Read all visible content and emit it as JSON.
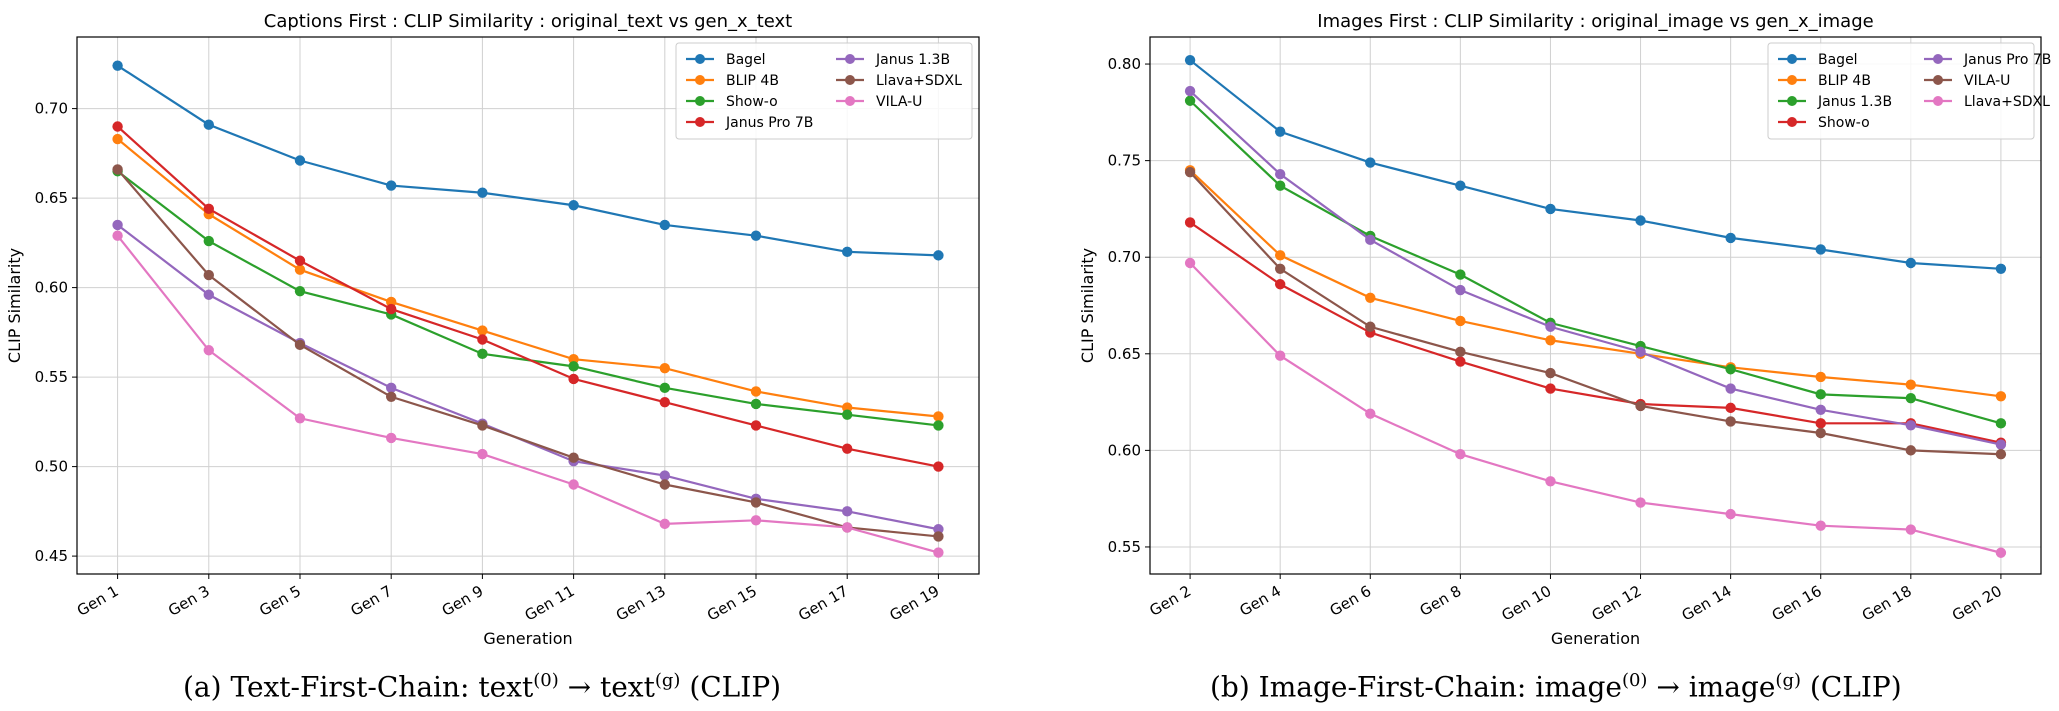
{
  "chart_data": [
    {
      "type": "line",
      "title": "Captions First : CLIP Similarity : original_text vs gen_x_text",
      "xlabel": "Generation",
      "ylabel": "CLIP Similarity",
      "categories": [
        "Gen 1",
        "Gen 3",
        "Gen 5",
        "Gen 7",
        "Gen 9",
        "Gen 11",
        "Gen 13",
        "Gen 15",
        "Gen 17",
        "Gen 19"
      ],
      "ylim": [
        0.44,
        0.74
      ],
      "yticks": [
        "0.45",
        "0.50",
        "0.55",
        "0.60",
        "0.65",
        "0.70"
      ],
      "grid": true,
      "legend": "top-right",
      "legend_columns": 2,
      "series": [
        {
          "name": "Bagel",
          "color": "#1f77b4",
          "values": [
            0.724,
            0.691,
            0.671,
            0.657,
            0.653,
            0.646,
            0.635,
            0.629,
            0.62,
            0.618
          ]
        },
        {
          "name": "BLIP 4B",
          "color": "#ff7f0e",
          "values": [
            0.683,
            0.641,
            0.61,
            0.592,
            0.576,
            0.56,
            0.555,
            0.542,
            0.533,
            0.528
          ]
        },
        {
          "name": "Show-o",
          "color": "#2ca02c",
          "values": [
            0.665,
            0.626,
            0.598,
            0.585,
            0.563,
            0.556,
            0.544,
            0.535,
            0.529,
            0.523
          ]
        },
        {
          "name": "Janus Pro 7B",
          "color": "#d62728",
          "values": [
            0.69,
            0.644,
            0.615,
            0.588,
            0.571,
            0.549,
            0.536,
            0.523,
            0.51,
            0.5
          ]
        },
        {
          "name": "Janus 1.3B",
          "color": "#9467bd",
          "values": [
            0.635,
            0.596,
            0.569,
            0.544,
            0.524,
            0.503,
            0.495,
            0.482,
            0.475,
            0.465
          ]
        },
        {
          "name": "Llava+SDXL",
          "color": "#8c564b",
          "values": [
            0.666,
            0.607,
            0.568,
            0.539,
            0.523,
            0.505,
            0.49,
            0.48,
            0.466,
            0.461
          ]
        },
        {
          "name": "VILA-U",
          "color": "#e377c2",
          "values": [
            0.629,
            0.565,
            0.527,
            0.516,
            0.507,
            0.49,
            0.468,
            0.47,
            0.466,
            0.452
          ]
        }
      ],
      "caption": {
        "prefix": "(a) Text-First-Chain: text",
        "sup1": "(0)",
        "arrow": " → text",
        "sup2": "(g)",
        "suffix": " (CLIP)"
      }
    },
    {
      "type": "line",
      "title": "Images First : CLIP Similarity : original_image vs gen_x_image",
      "xlabel": "Generation",
      "ylabel": "CLIP Similarity",
      "categories": [
        "Gen 2",
        "Gen 4",
        "Gen 6",
        "Gen 8",
        "Gen 10",
        "Gen 12",
        "Gen 14",
        "Gen 16",
        "Gen 18",
        "Gen 20"
      ],
      "ylim": [
        0.536,
        0.814
      ],
      "yticks": [
        "0.55",
        "0.60",
        "0.65",
        "0.70",
        "0.75",
        "0.80"
      ],
      "grid": true,
      "legend": "top-right",
      "legend_columns": 2,
      "series": [
        {
          "name": "Bagel",
          "color": "#1f77b4",
          "values": [
            0.802,
            0.765,
            0.749,
            0.737,
            0.725,
            0.719,
            0.71,
            0.704,
            0.697,
            0.694
          ]
        },
        {
          "name": "BLIP 4B",
          "color": "#ff7f0e",
          "values": [
            0.745,
            0.701,
            0.679,
            0.667,
            0.657,
            0.65,
            0.643,
            0.638,
            0.634,
            0.628
          ]
        },
        {
          "name": "Janus 1.3B",
          "color": "#2ca02c",
          "values": [
            0.781,
            0.737,
            0.711,
            0.691,
            0.666,
            0.654,
            0.642,
            0.629,
            0.627,
            0.614
          ]
        },
        {
          "name": "Show-o",
          "color": "#d62728",
          "values": [
            0.718,
            0.686,
            0.661,
            0.646,
            0.632,
            0.624,
            0.622,
            0.614,
            0.614,
            0.604
          ]
        },
        {
          "name": "Janus Pro 7B",
          "color": "#9467bd",
          "values": [
            0.786,
            0.743,
            0.709,
            0.683,
            0.664,
            0.651,
            0.632,
            0.621,
            0.613,
            0.603
          ]
        },
        {
          "name": "VILA-U",
          "color": "#8c564b",
          "values": [
            0.744,
            0.694,
            0.664,
            0.651,
            0.64,
            0.623,
            0.615,
            0.609,
            0.6,
            0.598
          ]
        },
        {
          "name": "Llava+SDXL",
          "color": "#e377c2",
          "values": [
            0.697,
            0.649,
            0.619,
            0.598,
            0.584,
            0.573,
            0.567,
            0.561,
            0.559,
            0.547
          ]
        }
      ],
      "caption": {
        "prefix": "(b) Image-First-Chain: image",
        "sup1": "(0)",
        "arrow": " → image",
        "sup2": "(g)",
        "suffix": " (CLIP)"
      }
    }
  ]
}
